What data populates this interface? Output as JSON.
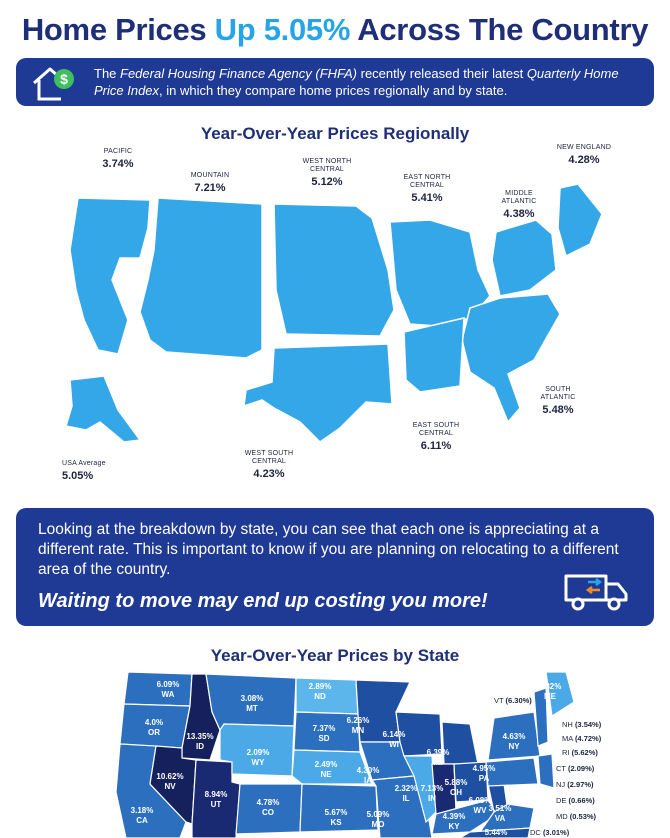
{
  "header": {
    "title_pre": "Home Prices ",
    "title_accent": "Up 5.05%",
    "title_post": " Across The Country"
  },
  "intro": {
    "icon": "house-dollar-icon",
    "text_1": "The ",
    "agency": "Federal Housing Finance Agency (FHFA)",
    "text_2": " recently released their latest ",
    "report": "Quarterly Home Price Index",
    "text_3": ", in which they compare home prices regionally and by state."
  },
  "regional": {
    "title": "Year-Over-Year Prices Regionally",
    "regions": [
      {
        "name": "PACIFIC",
        "value": "3.74%"
      },
      {
        "name": "MOUNTAIN",
        "value": "7.21%"
      },
      {
        "name": "WEST NORTH CENTRAL",
        "value": "5.12%"
      },
      {
        "name": "EAST NORTH CENTRAL",
        "value": "5.41%"
      },
      {
        "name": "MIDDLE ATLANTIC",
        "value": "4.38%"
      },
      {
        "name": "NEW ENGLAND",
        "value": "4.28%"
      },
      {
        "name": "SOUTH ATLANTIC",
        "value": "5.48%"
      },
      {
        "name": "EAST SOUTH CENTRAL",
        "value": "6.11%"
      },
      {
        "name": "WEST SOUTH CENTRAL",
        "value": "4.23%"
      },
      {
        "name": "USA Average",
        "value": "5.05%"
      }
    ]
  },
  "breakdown": {
    "text": "Looking at the breakdown by state, you can see that each one is appreciating at a different rate. This is important to know if you are planning on relocating to a different area of the country.",
    "cta": "Waiting to move may end up costing you more!",
    "icon": "moving-van-icon"
  },
  "by_state": {
    "title": "Year-Over-Year Prices by State",
    "states": [
      {
        "abbr": "WA",
        "value": "6.09%"
      },
      {
        "abbr": "OR",
        "value": "4.0%"
      },
      {
        "abbr": "CA",
        "value": "3.18%"
      },
      {
        "abbr": "ID",
        "value": "13.35%"
      },
      {
        "abbr": "NV",
        "value": "10.62%"
      },
      {
        "abbr": "UT",
        "value": "8.94%"
      },
      {
        "abbr": "MT",
        "value": "3.08%"
      },
      {
        "abbr": "WY",
        "value": "2.09%"
      },
      {
        "abbr": "CO",
        "value": "4.78%"
      },
      {
        "abbr": "ND",
        "value": "2.89%"
      },
      {
        "abbr": "SD",
        "value": "7.37%"
      },
      {
        "abbr": "NE",
        "value": "2.49%"
      },
      {
        "abbr": "KS",
        "value": "5.67%"
      },
      {
        "abbr": "MN",
        "value": "6.26%"
      },
      {
        "abbr": "IA",
        "value": "4.30%"
      },
      {
        "abbr": "MO",
        "value": "5.09%"
      },
      {
        "abbr": "WI",
        "value": "6.14%"
      },
      {
        "abbr": "IL",
        "value": "2.32%"
      },
      {
        "abbr": "MI",
        "value": "6.39%"
      },
      {
        "abbr": "IN",
        "value": "7.13%"
      },
      {
        "abbr": "OH",
        "value": "5.88%"
      },
      {
        "abbr": "KY",
        "value": "4.39%"
      },
      {
        "abbr": "WV",
        "value": "6.08%"
      },
      {
        "abbr": "VA",
        "value": "3.51%"
      },
      {
        "abbr": "PA",
        "value": "4.95%"
      },
      {
        "abbr": "NY",
        "value": "4.63%"
      },
      {
        "abbr": "ME",
        "value": "5.82%"
      },
      {
        "abbr": "NC",
        "value": "5.44%"
      }
    ],
    "northeast_list": [
      {
        "abbr": "VT",
        "value": "(6.30%)"
      },
      {
        "abbr": "NH",
        "value": "(3.54%)"
      },
      {
        "abbr": "MA",
        "value": "(4.72%)"
      },
      {
        "abbr": "RI",
        "value": "(5.62%)"
      },
      {
        "abbr": "CT",
        "value": "(2.09%)"
      },
      {
        "abbr": "NJ",
        "value": "(2.97%)"
      },
      {
        "abbr": "DE",
        "value": "(0.66%)"
      },
      {
        "abbr": "MD",
        "value": "(0.53%)"
      },
      {
        "abbr": "DC",
        "value": "(3.01%)"
      }
    ]
  },
  "colors": {
    "navy": "#1e2f78",
    "accent": "#27a4e8",
    "map_blue": "#33a7e8",
    "banner": "#1f3a95"
  }
}
